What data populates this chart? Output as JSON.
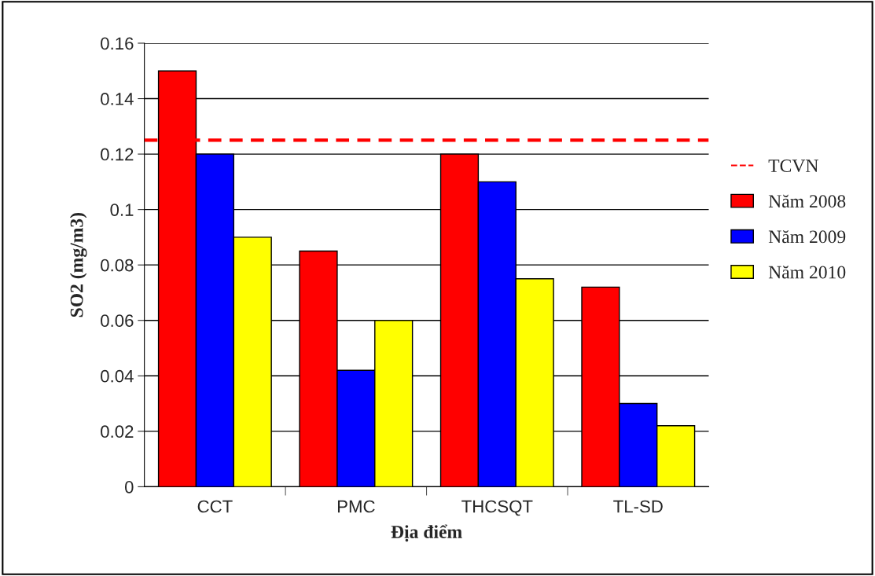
{
  "chart_data": {
    "type": "bar",
    "xlabel": "Địa điểm",
    "ylabel": "SO2 (mg/m3)",
    "categories": [
      "CCT",
      "PMC",
      "THCSQT",
      "TL-SD"
    ],
    "series": [
      {
        "name": "Năm 2008",
        "color": "#ff0000",
        "values": [
          0.15,
          0.085,
          0.12,
          0.072
        ]
      },
      {
        "name": "Năm 2009",
        "color": "#0000ff",
        "values": [
          0.12,
          0.042,
          0.11,
          0.03
        ]
      },
      {
        "name": "Năm 2010",
        "color": "#ffff00",
        "values": [
          0.09,
          0.06,
          0.075,
          0.022
        ]
      }
    ],
    "ylim": [
      0,
      0.16
    ],
    "yticks": [
      0,
      0.02,
      0.04,
      0.06,
      0.08,
      0.1,
      0.12,
      0.14,
      0.16
    ],
    "ref_lines": [
      {
        "axis": "y",
        "value": 0.125,
        "label": "TCVN",
        "color": "#ff0000",
        "line_style": "dashed"
      }
    ],
    "grid": "y",
    "legend": "right"
  }
}
